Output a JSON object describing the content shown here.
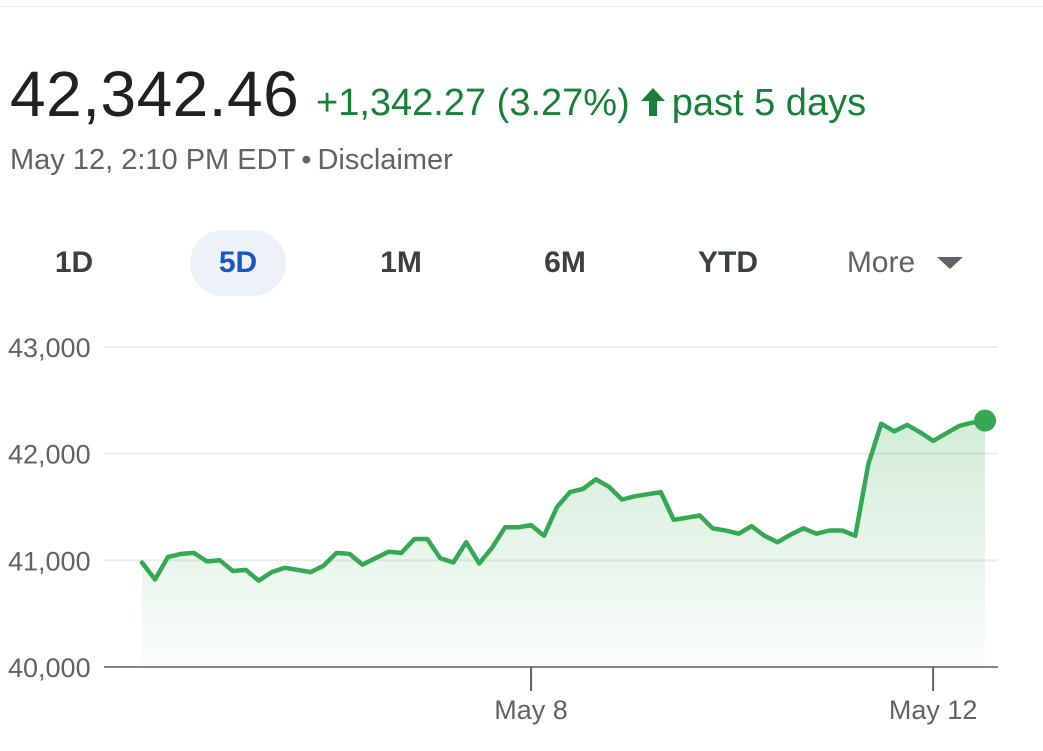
{
  "quote": {
    "price": "42,342.46",
    "change": "+1,342.27 (3.27%)",
    "period": "past 5 days",
    "timestamp": "May 12, 2:10 PM EDT",
    "separator": "•",
    "disclaimer": "Disclaimer"
  },
  "tabs": [
    {
      "label": "1D",
      "active": false
    },
    {
      "label": "5D",
      "active": true
    },
    {
      "label": "1M",
      "active": false
    },
    {
      "label": "6M",
      "active": false
    },
    {
      "label": "YTD",
      "active": false
    },
    {
      "label": "More",
      "active": false
    }
  ],
  "colors": {
    "up": "#188038",
    "line": "#34a853",
    "active_tab_text": "#1a57c6",
    "active_tab_bg": "#eef2f8"
  },
  "chart_data": {
    "type": "area",
    "ylim": [
      40000,
      43000
    ],
    "yticks": [
      40000,
      41000,
      42000,
      43000
    ],
    "ytick_labels": [
      "40,000",
      "41,000",
      "42,000",
      "43,000"
    ],
    "grid": true,
    "xticks": [
      {
        "index": 30,
        "label": "May 8"
      },
      {
        "index": 61,
        "label": "May 12"
      }
    ],
    "values": [
      40980,
      40820,
      41030,
      41060,
      41070,
      40990,
      41000,
      40900,
      40910,
      40810,
      40890,
      40930,
      40910,
      40890,
      40950,
      41070,
      41060,
      40960,
      41020,
      41080,
      41070,
      41200,
      41200,
      41020,
      40980,
      41170,
      40970,
      41120,
      41310,
      41310,
      41330,
      41230,
      41500,
      41640,
      41670,
      41760,
      41690,
      41570,
      41600,
      41620,
      41640,
      41380,
      41400,
      41420,
      41300,
      41280,
      41250,
      41320,
      41230,
      41170,
      41240,
      41300,
      41250,
      41280,
      41280,
      41230,
      41900,
      42280,
      42210,
      42270,
      42200,
      42120,
      42190,
      42260,
      42290,
      42310
    ],
    "last_value": 42342.46
  }
}
